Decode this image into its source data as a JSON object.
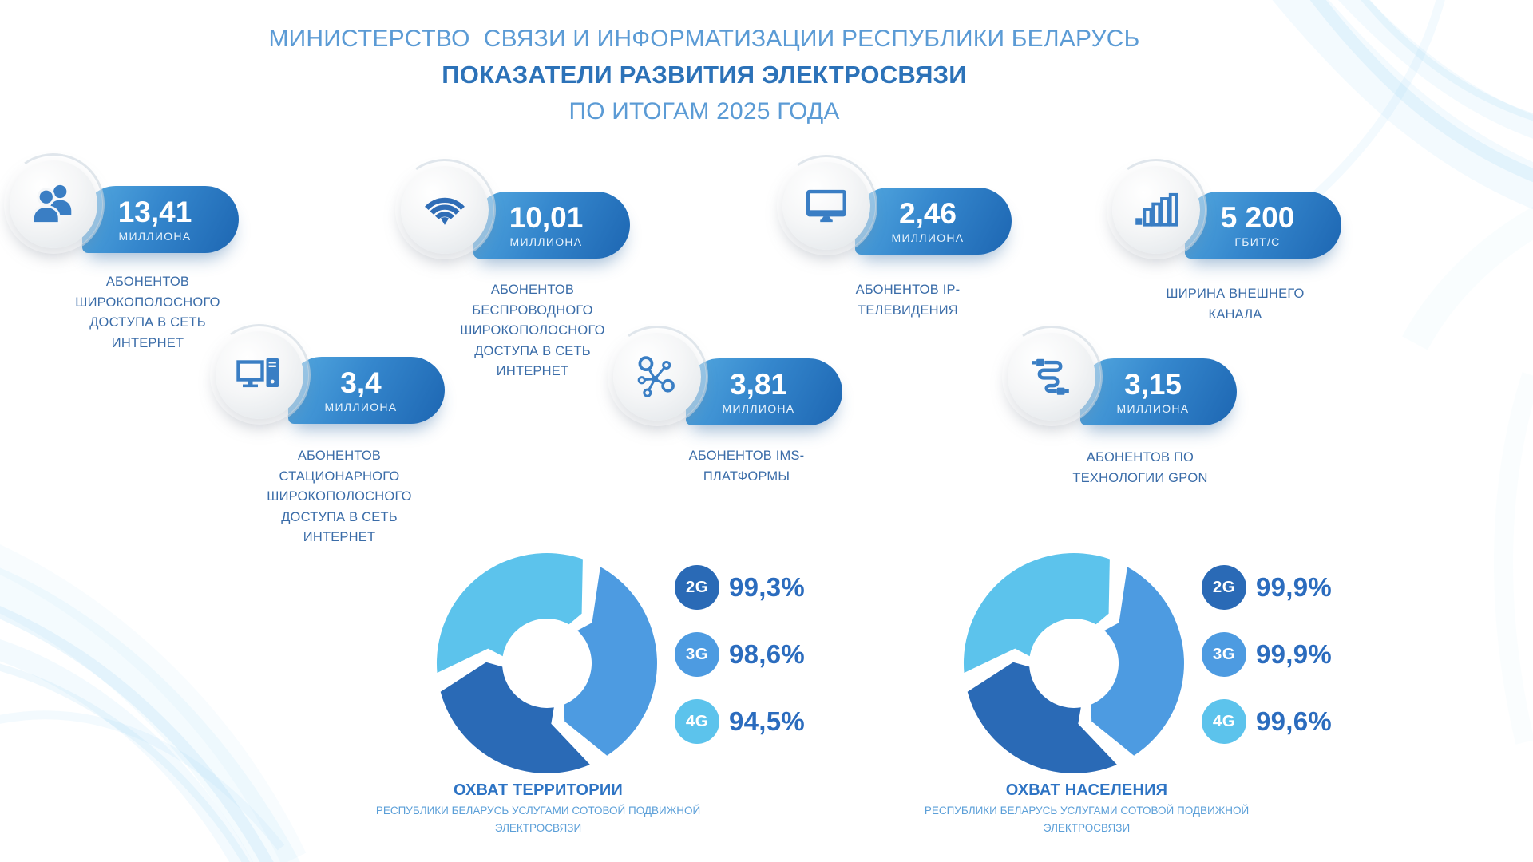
{
  "title": {
    "line1": "МИНИСТЕРСТВО  СВЯЗИ И ИНФОРМАТИЗАЦИИ РЕСПУБЛИКИ БЕЛАРУСЬ",
    "line2": "ПОКАЗАТЕЛИ РАЗВИТИЯ ЭЛЕКТРОСВЯЗИ",
    "line3": "ПО ИТОГАМ 2025 ГОДА"
  },
  "stats": [
    {
      "icon": "people-icon",
      "value": "13,41",
      "unit": "МИЛЛИОНА",
      "label": "АБОНЕНТОВ\nШИРОКОПОЛОСНОГО\nДОСТУПА В СЕТЬ\nИНТЕРНЕТ"
    },
    {
      "icon": "wifi-icon",
      "value": "10,01",
      "unit": "МИЛЛИОНА",
      "label": "АБОНЕНТОВ\nБЕСПРОВОДНОГО\nШИРОКОПОЛОСНОГО\nДОСТУПА В СЕТЬ\nИНТЕРНЕТ"
    },
    {
      "icon": "tv-icon",
      "value": "2,46",
      "unit": "МИЛЛИОНА",
      "label": "АБОНЕНТОВ IP-\nТЕЛЕВИДЕНИЯ"
    },
    {
      "icon": "bar-chart-icon",
      "value": "5 200",
      "unit": "ГБИТ/С",
      "label": "ШИРИНА ВНЕШНЕГО\nКАНАЛА"
    },
    {
      "icon": "desktop-computer-icon",
      "value": "3,4",
      "unit": "МИЛЛИОНА",
      "label": "АБОНЕНТОВ\nСТАЦИОНАРНОГО\nШИРОКОПОЛОСНОГО\nДОСТУПА В СЕТЬ\nИНТЕРНЕТ"
    },
    {
      "icon": "network-nodes-icon",
      "value": "3,81",
      "unit": "МИЛЛИОНА",
      "label": "АБОНЕНТОВ IMS-\nПЛАТФОРМЫ"
    },
    {
      "icon": "cable-icon",
      "value": "3,15",
      "unit": "МИЛЛИОНА",
      "label": "АБОНЕНТОВ ПО\nТЕХНОЛОГИИ GPON"
    }
  ],
  "chart_data": [
    {
      "type": "pie",
      "variant": "segmented-donut",
      "title": "ОХВАТ ТЕРРИТОРИИ",
      "subtitle": "РЕСПУБЛИКИ БЕЛАРУСЬ УСЛУГАМИ СОТОВОЙ ПОДВИЖНОЙ\nЭЛЕКТРОСВЯЗИ",
      "categories": [
        "2G",
        "3G",
        "4G"
      ],
      "values": [
        99.3,
        98.6,
        94.5
      ],
      "value_labels": [
        "99,3%",
        "98,6%",
        "94,5%"
      ],
      "colors": [
        "#2a6ab6",
        "#4d9be1",
        "#5cc3ec"
      ],
      "legend_position": "right"
    },
    {
      "type": "pie",
      "variant": "segmented-donut",
      "title": "ОХВАТ НАСЕЛЕНИЯ",
      "subtitle": "РЕСПУБЛИКИ БЕЛАРУСЬ УСЛУГАМИ СОТОВОЙ ПОДВИЖНОЙ\nЭЛЕКТРОСВЯЗИ",
      "categories": [
        "2G",
        "3G",
        "4G"
      ],
      "values": [
        99.9,
        99.9,
        99.6
      ],
      "value_labels": [
        "99,9%",
        "99,9%",
        "99,6%"
      ],
      "colors": [
        "#2a6ab6",
        "#4d9be1",
        "#5cc3ec"
      ],
      "legend_position": "right"
    }
  ],
  "palette": {
    "title_light": "#5b9bd5",
    "title_bold": "#2c72b8",
    "label_blue": "#3a6ca8",
    "icon_blue": "#3a7ec4",
    "pill_gradient_start": "#54a9e0",
    "pill_gradient_end": "#1d66b2",
    "percent_text": "#2b6cbe"
  }
}
